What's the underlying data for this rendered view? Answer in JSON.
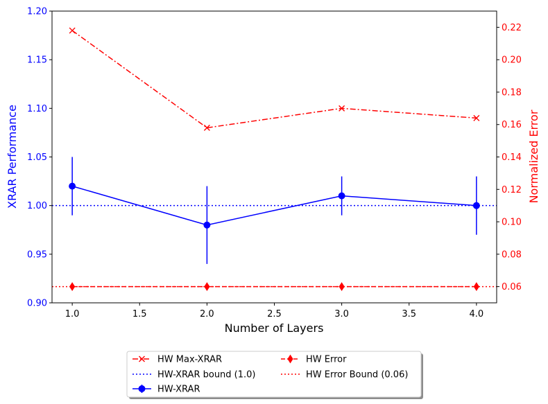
{
  "colors": {
    "left_axis": "#0000ff",
    "right_axis": "#ff0000",
    "text": "#000000"
  },
  "chart_data": {
    "type": "line",
    "title": "",
    "xlabel": "Number of Layers",
    "ylabel": "XRAR Performance",
    "ylabel_right": "Normalized Error",
    "xlim": [
      0.85,
      4.15
    ],
    "ylim": [
      0.9,
      1.2
    ],
    "ylim_right": [
      0.05,
      0.23
    ],
    "x_ticks": [
      "1.0",
      "1.5",
      "2.0",
      "2.5",
      "3.0",
      "3.5",
      "4.0"
    ],
    "y_ticks": [
      "0.90",
      "0.95",
      "1.00",
      "1.05",
      "1.10",
      "1.15",
      "1.20"
    ],
    "y_right_ticks": [
      "0.06",
      "0.08",
      "0.10",
      "0.12",
      "0.14",
      "0.16",
      "0.18",
      "0.20",
      "0.22"
    ],
    "grid": false,
    "legend_position": "below",
    "series": [
      {
        "name": "HW-XRAR",
        "axis": "left",
        "style": "solid",
        "marker": "circle",
        "color": "#0000ff",
        "x": [
          1,
          2,
          3,
          4
        ],
        "values": [
          1.02,
          0.98,
          1.01,
          1.0
        ],
        "err_low": [
          0.03,
          0.04,
          0.02,
          0.03
        ],
        "err_high": [
          0.03,
          0.04,
          0.02,
          0.03
        ]
      },
      {
        "name": "HW Max-XRAR",
        "axis": "right",
        "style": "dashdot",
        "marker": "x",
        "color": "#ff0000",
        "x": [
          1,
          2,
          3,
          4
        ],
        "values": [
          0.218,
          0.158,
          0.17,
          0.164
        ]
      },
      {
        "name": "HW Error",
        "axis": "right",
        "style": "dashed",
        "marker": "diamond",
        "color": "#ff0000",
        "x": [
          1,
          2,
          3,
          4
        ],
        "values": [
          0.06,
          0.06,
          0.06,
          0.06
        ]
      },
      {
        "name": "HW-XRAR bound (1.0)",
        "axis": "left",
        "style": "dotted",
        "color": "#0000ff",
        "hline": 1.0
      },
      {
        "name": "HW Error Bound (0.06)",
        "axis": "right",
        "style": "dotted",
        "color": "#ff0000",
        "hline": 0.06
      }
    ],
    "legend": [
      {
        "label": "HW Max-XRAR",
        "series": "HW Max-XRAR"
      },
      {
        "label": "HW Error",
        "series": "HW Error"
      },
      {
        "label": "HW-XRAR bound (1.0)",
        "series": "HW-XRAR bound (1.0)"
      },
      {
        "label": "HW Error Bound (0.06)",
        "series": "HW Error Bound (0.06)"
      },
      {
        "label": "HW-XRAR",
        "series": "HW-XRAR"
      }
    ]
  }
}
